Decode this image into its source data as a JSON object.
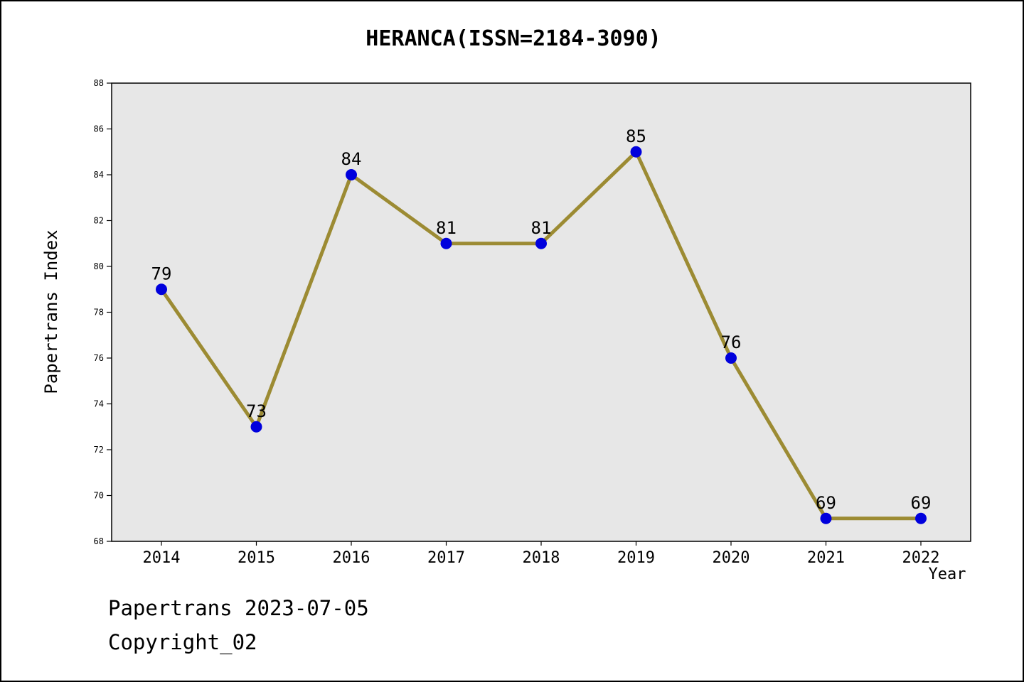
{
  "title": "HERANCA(ISSN=2184-3090)",
  "footer": {
    "line1": "Papertrans 2023-07-05",
    "line2": "Copyright_02"
  },
  "chart_data": {
    "type": "line",
    "title": "HERANCA(ISSN=2184-3090)",
    "x": [
      2014,
      2015,
      2016,
      2017,
      2018,
      2019,
      2020,
      2021,
      2022
    ],
    "series": [
      {
        "name": "Papertrans Index",
        "values": [
          79,
          73,
          84,
          81,
          81,
          85,
          76,
          69,
          69
        ]
      }
    ],
    "xlabel": "Year",
    "ylabel": "Papertrans Index",
    "ylim": [
      68,
      88
    ],
    "ytick_step": 2,
    "grid": false,
    "legend": "none",
    "colors": {
      "line": "#9c8b33",
      "marker": "#0000dd",
      "plot_bg": "#e7e7e7",
      "plot_border": "#000000"
    }
  }
}
